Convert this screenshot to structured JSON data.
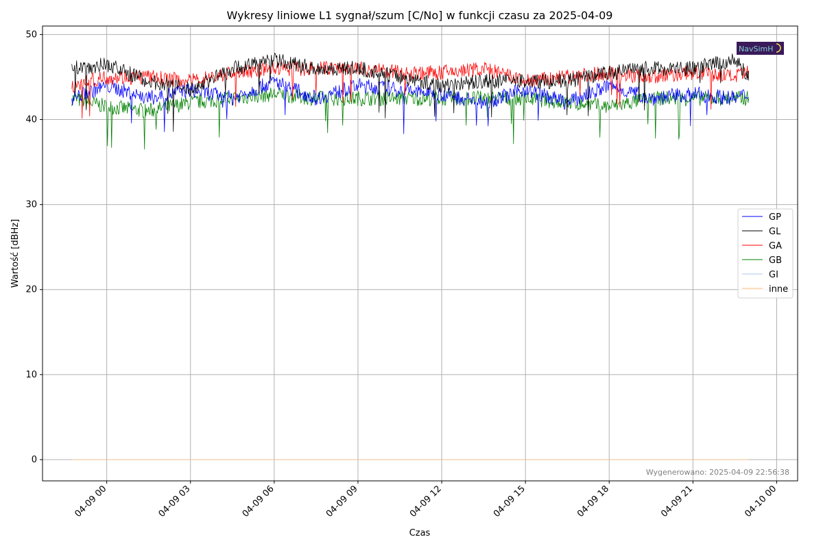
{
  "chart_data": {
    "type": "line",
    "title": "Wykresy liniowe L1 sygnał/szum [C/No] w funkcji czasu za 2025-04-09",
    "xlabel": "Czas",
    "ylabel": "Wartość [dBHz]",
    "x_range": [
      "2025-04-08 21:42",
      "2025-04-10 00:45"
    ],
    "ylim": [
      -2.5,
      51
    ],
    "x_ticks": [
      "04-09 00",
      "04-09 03",
      "04-09 06",
      "04-09 09",
      "04-09 12",
      "04-09 15",
      "04-09 18",
      "04-09 21",
      "04-10 00"
    ],
    "y_ticks": [
      0,
      10,
      20,
      30,
      40,
      50
    ],
    "grid": true,
    "legend_position": "center-right",
    "series": [
      {
        "name": "GP",
        "color": "#0000ff",
        "x": [
          "2025-04-08 22:45",
          "2025-04-09 00:00",
          "2025-04-09 01:30",
          "2025-04-09 03:00",
          "2025-04-09 04:30",
          "2025-04-09 06:00",
          "2025-04-09 07:30",
          "2025-04-09 09:00",
          "2025-04-09 10:30",
          "2025-04-09 12:00",
          "2025-04-09 13:30",
          "2025-04-09 15:00",
          "2025-04-09 16:30",
          "2025-04-09 18:00",
          "2025-04-09 19:30",
          "2025-04-09 21:00",
          "2025-04-09 22:30",
          "2025-04-09 23:00"
        ],
        "values": [
          42.5,
          44,
          42.5,
          43.5,
          42.5,
          44.5,
          42.5,
          44,
          43.5,
          43,
          42,
          43.5,
          42,
          44,
          42.5,
          43,
          42.5,
          43
        ]
      },
      {
        "name": "GL",
        "color": "#000000",
        "x": [
          "2025-04-08 22:45",
          "2025-04-09 00:00",
          "2025-04-09 01:30",
          "2025-04-09 03:00",
          "2025-04-09 04:30",
          "2025-04-09 06:00",
          "2025-04-09 07:30",
          "2025-04-09 09:00",
          "2025-04-09 10:30",
          "2025-04-09 12:00",
          "2025-04-09 13:30",
          "2025-04-09 15:00",
          "2025-04-09 16:30",
          "2025-04-09 18:00",
          "2025-04-09 19:30",
          "2025-04-09 21:00",
          "2025-04-09 22:30",
          "2025-04-09 23:00"
        ],
        "values": [
          46,
          46.5,
          44.5,
          43.5,
          46,
          47,
          46,
          46,
          45,
          44,
          44.5,
          44.5,
          44.5,
          45.5,
          46,
          46,
          47,
          45
        ]
      },
      {
        "name": "GA",
        "color": "#ff0000",
        "x": [
          "2025-04-08 22:45",
          "2025-04-09 00:00",
          "2025-04-09 01:30",
          "2025-04-09 03:00",
          "2025-04-09 04:30",
          "2025-04-09 06:00",
          "2025-04-09 07:30",
          "2025-04-09 09:00",
          "2025-04-09 10:30",
          "2025-04-09 12:00",
          "2025-04-09 13:30",
          "2025-04-09 15:00",
          "2025-04-09 16:30",
          "2025-04-09 18:00",
          "2025-04-09 19:30",
          "2025-04-09 21:00",
          "2025-04-09 22:30",
          "2025-04-09 23:00"
        ],
        "values": [
          44,
          45,
          45,
          44.5,
          45.5,
          46,
          46,
          46,
          45.5,
          45.5,
          46,
          44.5,
          45,
          45.5,
          45,
          45.5,
          45,
          45.5
        ]
      },
      {
        "name": "GB",
        "color": "#008000",
        "x": [
          "2025-04-08 22:45",
          "2025-04-09 00:00",
          "2025-04-09 01:30",
          "2025-04-09 03:00",
          "2025-04-09 04:30",
          "2025-04-09 06:00",
          "2025-04-09 07:30",
          "2025-04-09 09:00",
          "2025-04-09 10:30",
          "2025-04-09 12:00",
          "2025-04-09 13:30",
          "2025-04-09 15:00",
          "2025-04-09 16:30",
          "2025-04-09 18:00",
          "2025-04-09 19:30",
          "2025-04-09 21:00",
          "2025-04-09 22:30",
          "2025-04-09 23:00"
        ],
        "values": [
          42.5,
          41.5,
          41,
          42,
          42.5,
          43,
          42.5,
          42.5,
          42.5,
          42.5,
          42.5,
          42.5,
          42,
          41.5,
          42.5,
          42.5,
          42.5,
          42.5
        ]
      },
      {
        "name": "GI",
        "color": "#aec7e8",
        "x": [
          "2025-04-08 22:45",
          "2025-04-09 23:00"
        ],
        "values": [
          0,
          0
        ]
      },
      {
        "name": "inne",
        "color": "#ffbb78",
        "x": [
          "2025-04-08 22:45",
          "2025-04-09 23:00"
        ],
        "values": [
          0,
          0
        ]
      }
    ]
  },
  "watermark": "NavSimH",
  "footer": "Wygenerowano: 2025-04-09 22:56:38"
}
